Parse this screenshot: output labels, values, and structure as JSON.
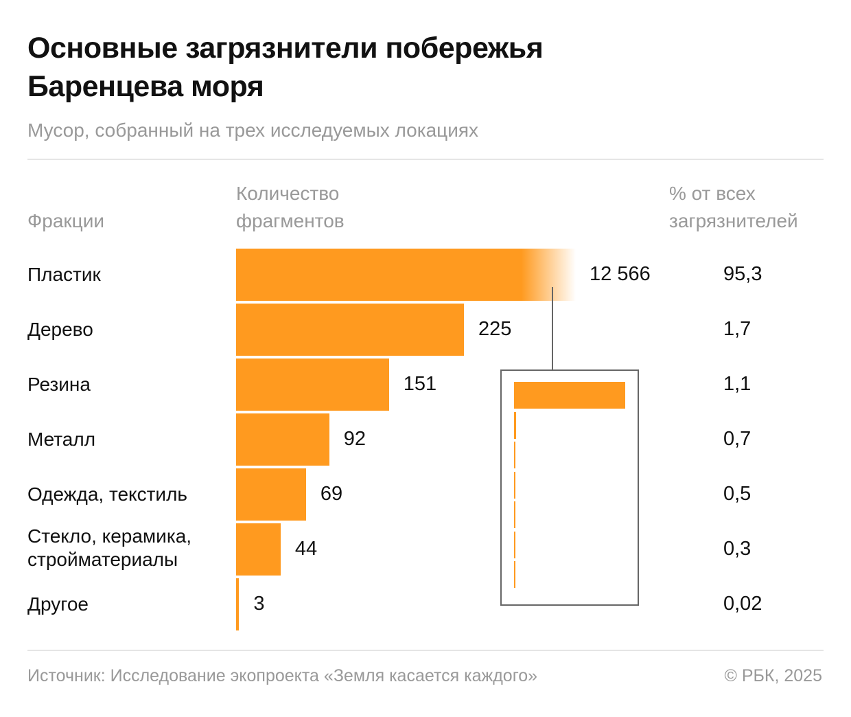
{
  "title": "Основные загрязнители побережья Баренцева моря",
  "subtitle": "Мусор, собранный на трех исследуемых локациях",
  "source": "Источник: Исследование экопроекта «Земля касается каждого»",
  "copyright": "© РБК, 2025",
  "chart_data": {
    "type": "bar",
    "orientation": "horizontal",
    "title": "Основные загрязнители побережья Баренцева моря",
    "subtitle": "Мусор, собранный на трех исследуемых локациях",
    "column_headers": {
      "category": "Фракции",
      "count": "Количество фрагментов",
      "percent": "% от всех загрязнителей"
    },
    "categories": [
      "Пластик",
      "Дерево",
      "Резина",
      "Металл",
      "Одежда, текстиль",
      "Стекло, керамика, стройматериалы",
      "Другое"
    ],
    "values": [
      12566,
      225,
      151,
      92,
      69,
      44,
      3
    ],
    "value_labels": [
      "12 566",
      "225",
      "151",
      "92",
      "69",
      "44",
      "3"
    ],
    "percent_labels": [
      "95,3",
      "1,7",
      "1,1",
      "0,7",
      "0,5",
      "0,3",
      "0,02"
    ],
    "truncated_first_bar": true,
    "inset": "full-scale comparison of all bars",
    "bar_color": "#FF9A1F"
  }
}
